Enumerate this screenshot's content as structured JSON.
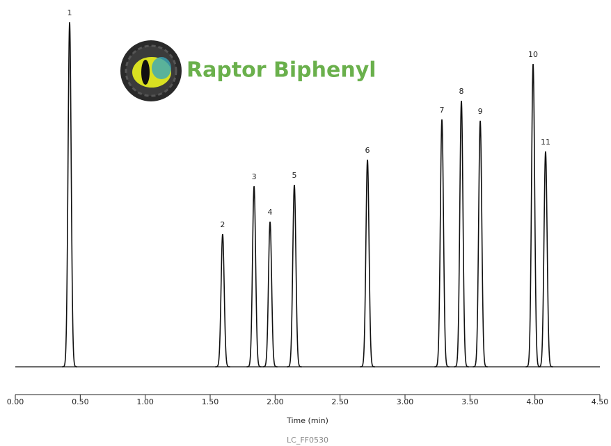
{
  "chart_data": {
    "type": "chromatogram",
    "brand": "Raptor Biphenyl",
    "x_label": "Time (min)",
    "footnote": "LC_FF0530",
    "labels": [
      "1",
      "2",
      "3",
      "4",
      "5",
      "6",
      "7",
      "8",
      "9",
      "10",
      "11"
    ],
    "x": [
      0.418,
      1.596,
      1.838,
      1.961,
      2.148,
      2.711,
      3.284,
      3.434,
      3.579,
      3.986,
      4.082
    ],
    "values": [
      100,
      38.5,
      52.4,
      42.1,
      52.8,
      60.1,
      71.8,
      77.2,
      71.4,
      87.9,
      62.5
    ],
    "color": "#111111",
    "xlim": [
      0,
      4.5
    ],
    "ylim": [
      0,
      100
    ],
    "xticks": [
      {
        "value": 0,
        "label": "0.00"
      },
      {
        "value": 0.5,
        "label": "0.50"
      },
      {
        "value": 1,
        "label": "1.00"
      },
      {
        "value": 1.5,
        "label": "1.50"
      },
      {
        "value": 2,
        "label": "2.00"
      },
      {
        "value": 2.5,
        "label": "2.50"
      },
      {
        "value": 3,
        "label": "3.00"
      },
      {
        "value": 3.5,
        "label": "3.50"
      },
      {
        "value": 4,
        "label": "4.00"
      },
      {
        "value": 4.5,
        "label": "4.50"
      }
    ]
  }
}
